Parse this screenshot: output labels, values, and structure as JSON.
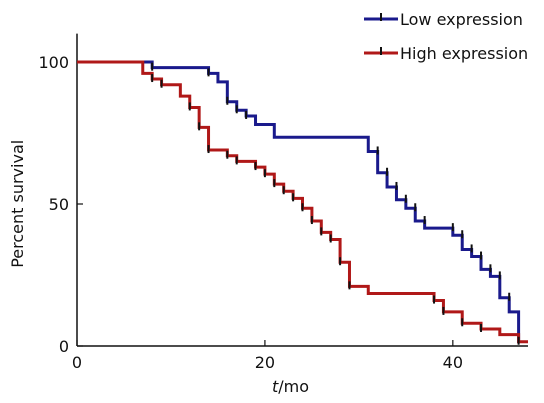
{
  "chart_data": {
    "type": "line",
    "step": true,
    "xlabel_italic": "t",
    "xlabel_rest": "/mo",
    "ylabel": "Percent survival",
    "xlim": [
      0,
      48
    ],
    "ylim": [
      0,
      110
    ],
    "x_ticks": [
      0,
      20,
      40
    ],
    "y_ticks": [
      0,
      50,
      100
    ],
    "x_tick_labels": [
      "0",
      "20",
      "40"
    ],
    "y_tick_labels": [
      "0",
      "50",
      "100"
    ],
    "grid": false,
    "legend_position": "top-right",
    "series": [
      {
        "name": "Low expression",
        "color": "#1a1a8c",
        "points": [
          [
            0,
            100
          ],
          [
            8,
            100
          ],
          [
            8,
            98
          ],
          [
            14,
            98
          ],
          [
            14,
            96
          ],
          [
            15,
            96
          ],
          [
            15,
            93
          ],
          [
            16,
            93
          ],
          [
            16,
            86
          ],
          [
            17,
            86
          ],
          [
            17,
            83
          ],
          [
            18,
            83
          ],
          [
            18,
            81
          ],
          [
            19,
            81
          ],
          [
            19,
            78
          ],
          [
            21,
            78
          ],
          [
            21,
            73.5
          ],
          [
            31,
            73.5
          ],
          [
            31,
            68.5
          ],
          [
            32,
            68.5
          ],
          [
            32,
            61
          ],
          [
            33,
            61
          ],
          [
            33,
            56
          ],
          [
            34,
            56
          ],
          [
            34,
            51.5
          ],
          [
            35,
            51.5
          ],
          [
            35,
            48.5
          ],
          [
            36,
            48.5
          ],
          [
            36,
            44
          ],
          [
            37,
            44
          ],
          [
            37,
            41.5
          ],
          [
            40,
            41.5
          ],
          [
            40,
            39
          ],
          [
            41,
            39
          ],
          [
            41,
            34
          ],
          [
            42,
            34
          ],
          [
            42,
            31.5
          ],
          [
            43,
            31.5
          ],
          [
            43,
            27
          ],
          [
            44,
            27
          ],
          [
            44,
            24.5
          ],
          [
            45,
            24.5
          ],
          [
            45,
            17
          ],
          [
            46,
            17
          ],
          [
            46,
            12
          ],
          [
            47,
            12
          ],
          [
            47,
            1
          ]
        ],
        "censors": [
          [
            8,
            98
          ],
          [
            14,
            96
          ],
          [
            16,
            86
          ],
          [
            17,
            83
          ],
          [
            18,
            81
          ],
          [
            32,
            68.5
          ],
          [
            33,
            61
          ],
          [
            34,
            56
          ],
          [
            35,
            51.5
          ],
          [
            36,
            48.5
          ],
          [
            37,
            44
          ],
          [
            40,
            41.5
          ],
          [
            41,
            39
          ],
          [
            42,
            34
          ],
          [
            43,
            31.5
          ],
          [
            44,
            27
          ],
          [
            45,
            24.5
          ],
          [
            46,
            17
          ]
        ]
      },
      {
        "name": "High expression",
        "color": "#b01818",
        "points": [
          [
            0,
            100
          ],
          [
            7,
            100
          ],
          [
            7,
            96
          ],
          [
            8,
            96
          ],
          [
            8,
            94
          ],
          [
            9,
            94
          ],
          [
            9,
            92
          ],
          [
            11,
            92
          ],
          [
            11,
            88
          ],
          [
            12,
            88
          ],
          [
            12,
            84
          ],
          [
            13,
            84
          ],
          [
            13,
            77
          ],
          [
            14,
            77
          ],
          [
            14,
            69
          ],
          [
            16,
            69
          ],
          [
            16,
            67
          ],
          [
            17,
            67
          ],
          [
            17,
            65
          ],
          [
            19,
            65
          ],
          [
            19,
            63
          ],
          [
            20,
            63
          ],
          [
            20,
            60.5
          ],
          [
            21,
            60.5
          ],
          [
            21,
            57
          ],
          [
            22,
            57
          ],
          [
            22,
            54.5
          ],
          [
            23,
            54.5
          ],
          [
            23,
            52
          ],
          [
            24,
            52
          ],
          [
            24,
            48.5
          ],
          [
            25,
            48.5
          ],
          [
            25,
            44
          ],
          [
            26,
            44
          ],
          [
            26,
            40
          ],
          [
            27,
            40
          ],
          [
            27,
            37.5
          ],
          [
            28,
            37.5
          ],
          [
            28,
            29.5
          ],
          [
            29,
            29.5
          ],
          [
            29,
            21
          ],
          [
            31,
            21
          ],
          [
            31,
            18.5
          ],
          [
            38,
            18.5
          ],
          [
            38,
            16
          ],
          [
            39,
            16
          ],
          [
            39,
            12
          ],
          [
            41,
            12
          ],
          [
            41,
            8
          ],
          [
            43,
            8
          ],
          [
            43,
            6
          ],
          [
            45,
            6
          ],
          [
            45,
            4
          ],
          [
            47,
            4
          ],
          [
            47,
            1.5
          ],
          [
            48,
            1.5
          ]
        ],
        "censors": [
          [
            8,
            94
          ],
          [
            9,
            92
          ],
          [
            12,
            84
          ],
          [
            13,
            77
          ],
          [
            14,
            69
          ],
          [
            16,
            67
          ],
          [
            17,
            65
          ],
          [
            19,
            63
          ],
          [
            20,
            60.5
          ],
          [
            21,
            57
          ],
          [
            22,
            54.5
          ],
          [
            23,
            52
          ],
          [
            24,
            48.5
          ],
          [
            25,
            44
          ],
          [
            26,
            40
          ],
          [
            27,
            37.5
          ],
          [
            28,
            29.5
          ],
          [
            29,
            21
          ],
          [
            38,
            16
          ],
          [
            39,
            12
          ],
          [
            41,
            8
          ],
          [
            43,
            6
          ],
          [
            47,
            1.5
          ]
        ]
      }
    ]
  }
}
